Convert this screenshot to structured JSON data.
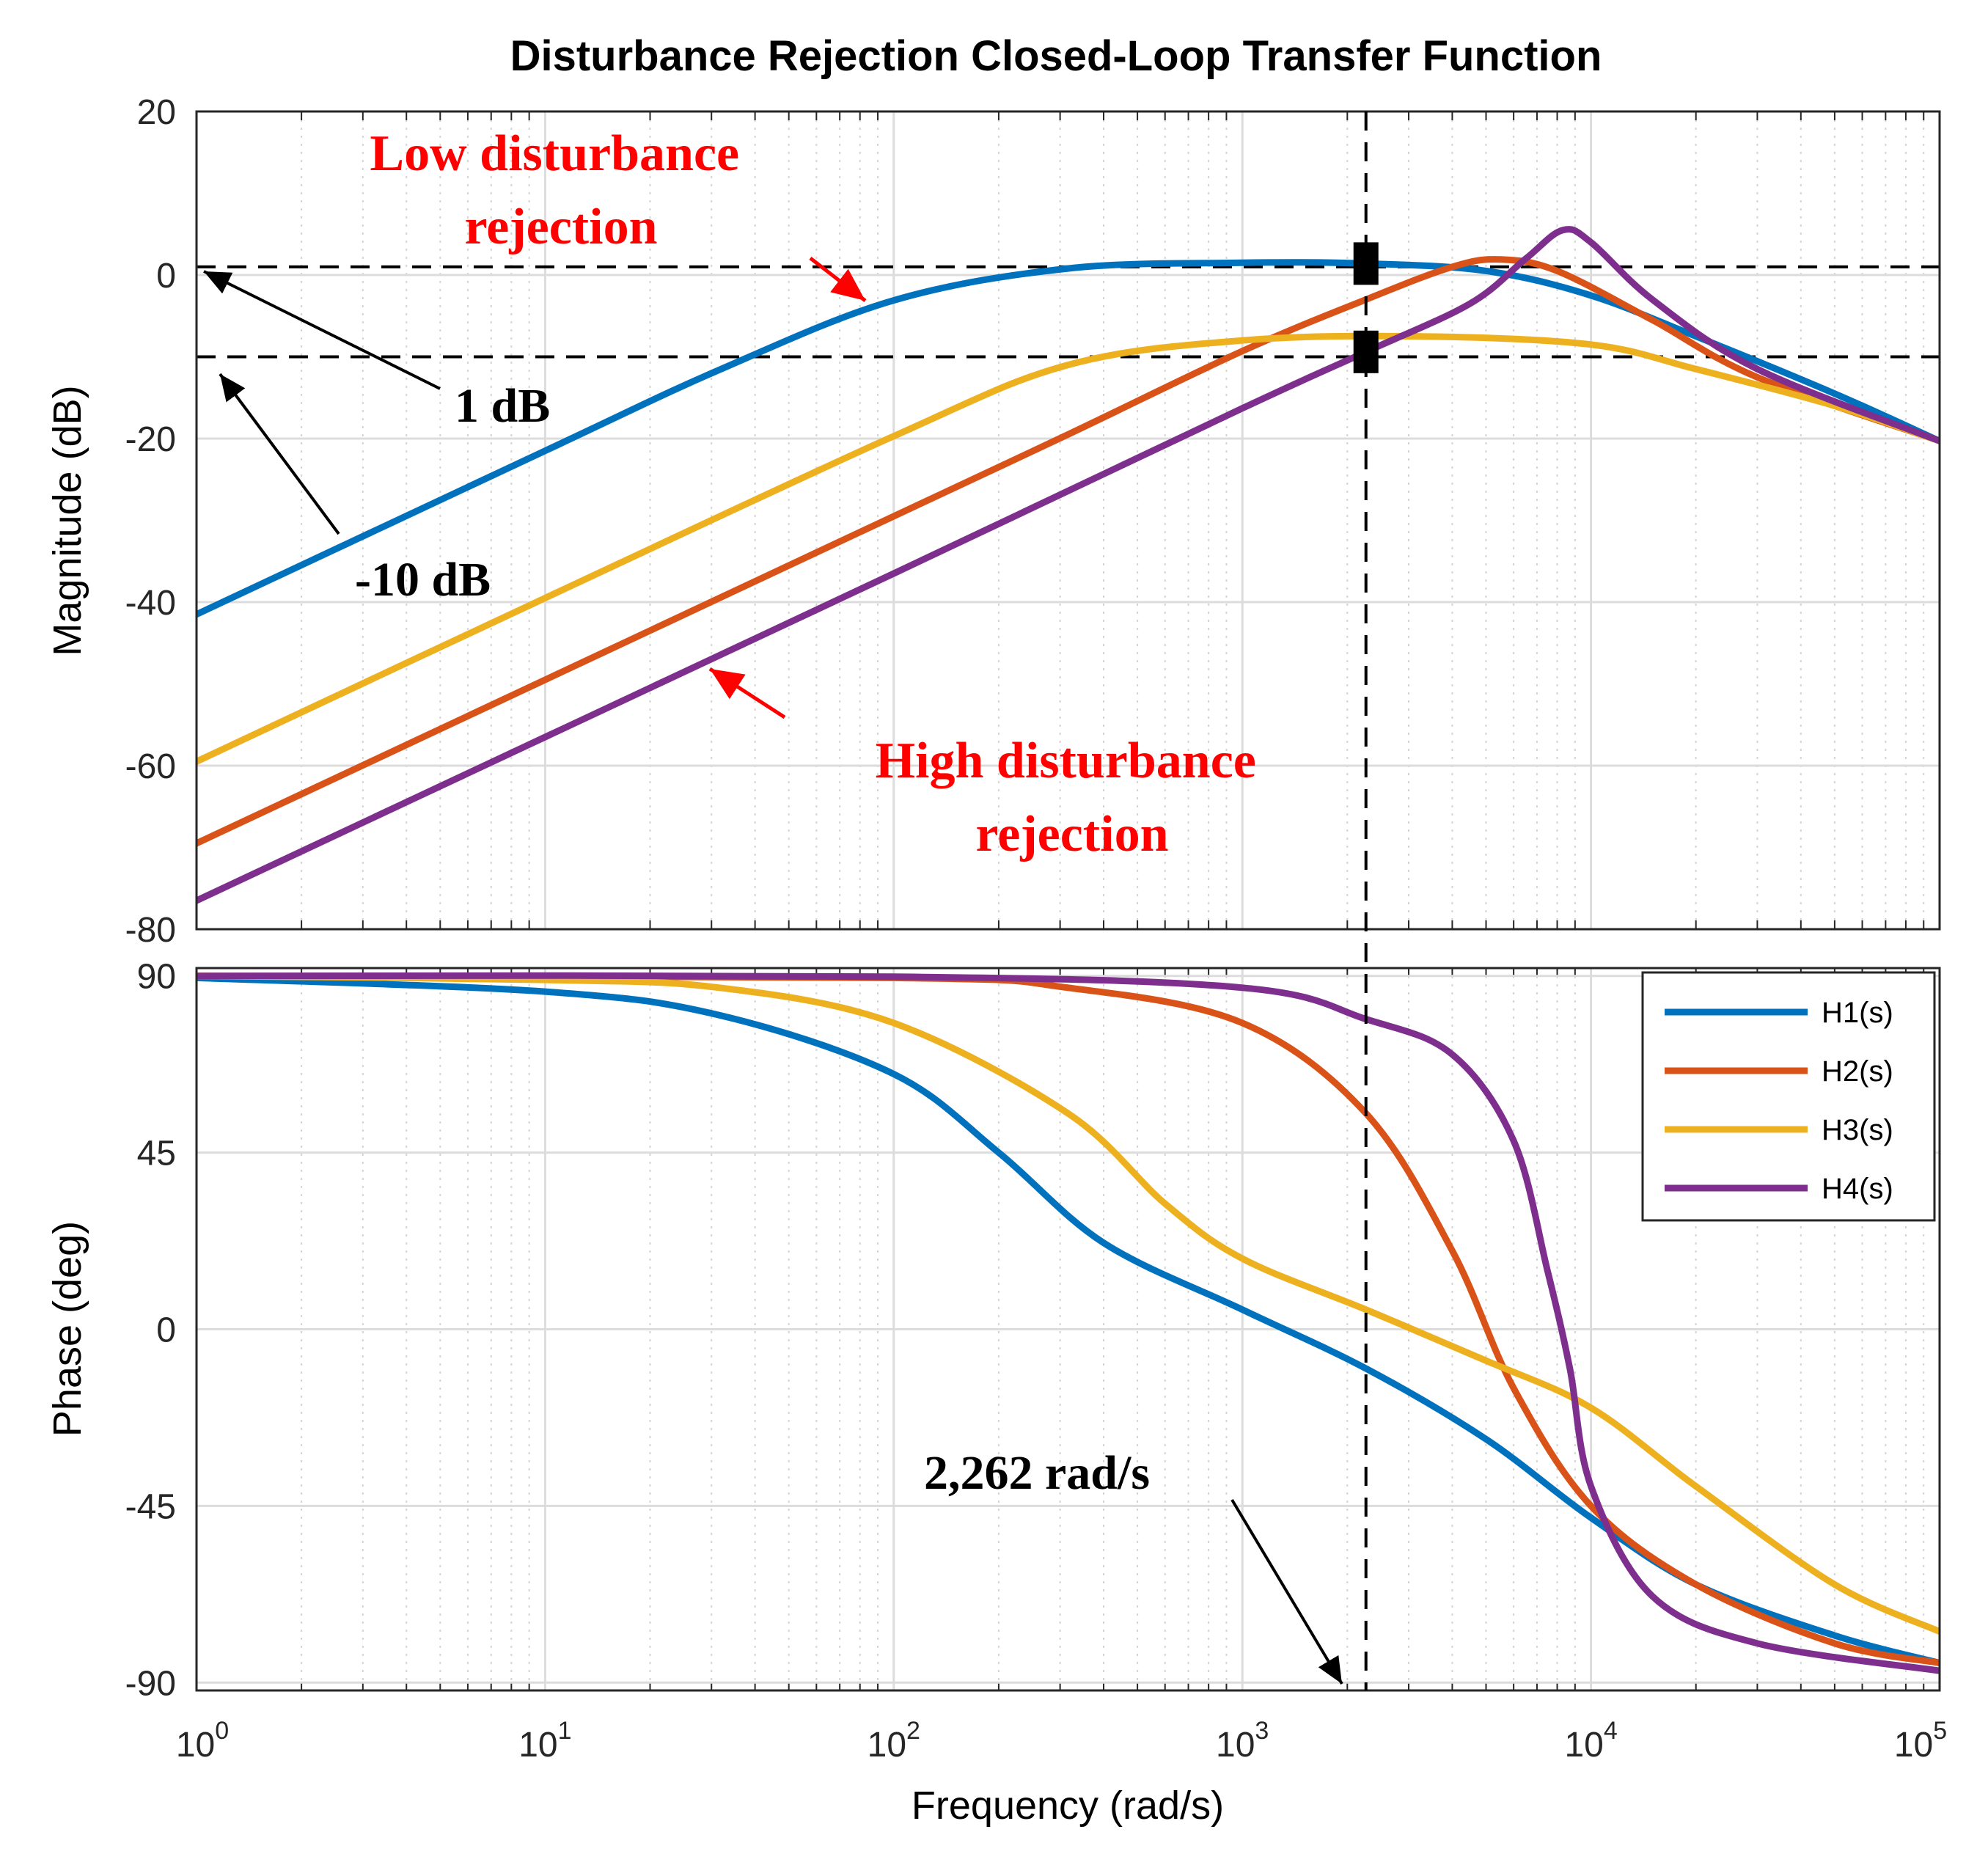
{
  "chart_data": {
    "type": "line",
    "title": "Disturbance Rejection Closed-Loop Transfer Function",
    "xlabel": "Frequency  (rad/s)",
    "xscale": "log",
    "xlim": [
      1,
      100000
    ],
    "x_tick_labels": [
      {
        "base": "10",
        "exp": "0"
      },
      {
        "base": "10",
        "exp": "1"
      },
      {
        "base": "10",
        "exp": "2"
      },
      {
        "base": "10",
        "exp": "3"
      },
      {
        "base": "10",
        "exp": "4"
      },
      {
        "base": "10",
        "exp": "5"
      }
    ],
    "colors": {
      "H1(s)": "#0072BD",
      "H2(s)": "#D95319",
      "H3(s)": "#EDB120",
      "H4(s)": "#7E2F8E"
    },
    "magnitude": {
      "ylabel": "Magnitude (dB)",
      "ylim": [
        -80,
        20
      ],
      "yticks": [
        "20",
        "0",
        "-20",
        "-40",
        "-60",
        "-80"
      ],
      "series": [
        {
          "name": "H1(s)",
          "points": [
            [
              1,
              -41.5
            ],
            [
              10,
              -21.5
            ],
            [
              31.6,
              -11.6
            ],
            [
              100,
              -3.1
            ],
            [
              316,
              0.8
            ],
            [
              1000,
              1.5
            ],
            [
              2262,
              1.4
            ],
            [
              5000,
              0.5
            ],
            [
              10000,
              -2.5
            ],
            [
              20000,
              -7.5
            ],
            [
              50000,
              -14.5
            ],
            [
              100000,
              -20.3
            ]
          ]
        },
        {
          "name": "H2(s)",
          "points": [
            [
              1,
              -69.5
            ],
            [
              10,
              -49.5
            ],
            [
              100,
              -29.5
            ],
            [
              316,
              -19.5
            ],
            [
              1000,
              -9.3
            ],
            [
              2262,
              -3
            ],
            [
              4000,
              1
            ],
            [
              5500,
              1.9
            ],
            [
              8000,
              0.5
            ],
            [
              15000,
              -5.5
            ],
            [
              30000,
              -12.5
            ],
            [
              100000,
              -20.3
            ]
          ]
        },
        {
          "name": "H3(s)",
          "points": [
            [
              1,
              -59.5
            ],
            [
              10,
              -39.5
            ],
            [
              100,
              -19.7
            ],
            [
              316,
              -11
            ],
            [
              1000,
              -8
            ],
            [
              3162,
              -7.5
            ],
            [
              10000,
              -8.5
            ],
            [
              20000,
              -11.5
            ],
            [
              50000,
              -16
            ],
            [
              100000,
              -20.3
            ]
          ]
        },
        {
          "name": "H4(s)",
          "points": [
            [
              1,
              -76.5
            ],
            [
              10,
              -56.5
            ],
            [
              100,
              -36.5
            ],
            [
              1000,
              -16.3
            ],
            [
              2262,
              -9.4
            ],
            [
              4500,
              -3.5
            ],
            [
              6500,
              2
            ],
            [
              8300,
              5.5
            ],
            [
              10000,
              4
            ],
            [
              15000,
              -3
            ],
            [
              30000,
              -11.5
            ],
            [
              100000,
              -20.3
            ]
          ]
        }
      ],
      "reference_lines_db": [
        1,
        -10
      ]
    },
    "phase": {
      "ylabel": "Phase (deg)",
      "ylim": [
        -92,
        92
      ],
      "yticks": [
        "90",
        "45",
        "0",
        "-45",
        "-90"
      ],
      "series": [
        {
          "name": "H1(s)",
          "points": [
            [
              1,
              89.5
            ],
            [
              10,
              86
            ],
            [
              31.6,
              80
            ],
            [
              100,
              65
            ],
            [
              200,
              45
            ],
            [
              400,
              22
            ],
            [
              1000,
              5
            ],
            [
              2262,
              -10
            ],
            [
              5000,
              -28
            ],
            [
              10000,
              -48
            ],
            [
              20000,
              -65
            ],
            [
              50000,
              -78
            ],
            [
              100000,
              -85
            ]
          ]
        },
        {
          "name": "H2(s)",
          "points": [
            [
              1,
              90
            ],
            [
              100,
              89.5
            ],
            [
              316,
              87
            ],
            [
              1000,
              78
            ],
            [
              2262,
              55
            ],
            [
              4000,
              20
            ],
            [
              6000,
              -15
            ],
            [
              10000,
              -45
            ],
            [
              20000,
              -65
            ],
            [
              50000,
              -80
            ],
            [
              100000,
              -85
            ]
          ]
        },
        {
          "name": "H3(s)",
          "points": [
            [
              1,
              90
            ],
            [
              10,
              89
            ],
            [
              31.6,
              87
            ],
            [
              100,
              78
            ],
            [
              316,
              55
            ],
            [
              600,
              32
            ],
            [
              1000,
              18
            ],
            [
              2262,
              5
            ],
            [
              5000,
              -8
            ],
            [
              10000,
              -20
            ],
            [
              20000,
              -40
            ],
            [
              50000,
              -65
            ],
            [
              100000,
              -77
            ]
          ]
        },
        {
          "name": "H4(s)",
          "points": [
            [
              1,
              90
            ],
            [
              100,
              89.8
            ],
            [
              1000,
              87
            ],
            [
              2262,
              79
            ],
            [
              4000,
              70
            ],
            [
              6000,
              48
            ],
            [
              7500,
              15
            ],
            [
              8700,
              -10
            ],
            [
              10000,
              -40
            ],
            [
              15000,
              -68
            ],
            [
              30000,
              -80
            ],
            [
              100000,
              -87
            ]
          ]
        }
      ]
    },
    "crossover_frequency": 2262,
    "markers": [
      {
        "x": 2262,
        "y_db": 1.4
      },
      {
        "x": 2262,
        "y_db": -9.4
      }
    ],
    "legend": {
      "placement": "top-right of phase plot",
      "entries": [
        "H1(s)",
        "H2(s)",
        "H3(s)",
        "H4(s)"
      ]
    },
    "annotations": {
      "low_rejection": [
        "Low disturbance",
        "rejection"
      ],
      "high_rejection": [
        "High disturbance",
        "rejection"
      ],
      "one_db": "1 dB",
      "minus_ten_db": "-10 dB",
      "crossover_label": "2,262 rad/s"
    }
  }
}
